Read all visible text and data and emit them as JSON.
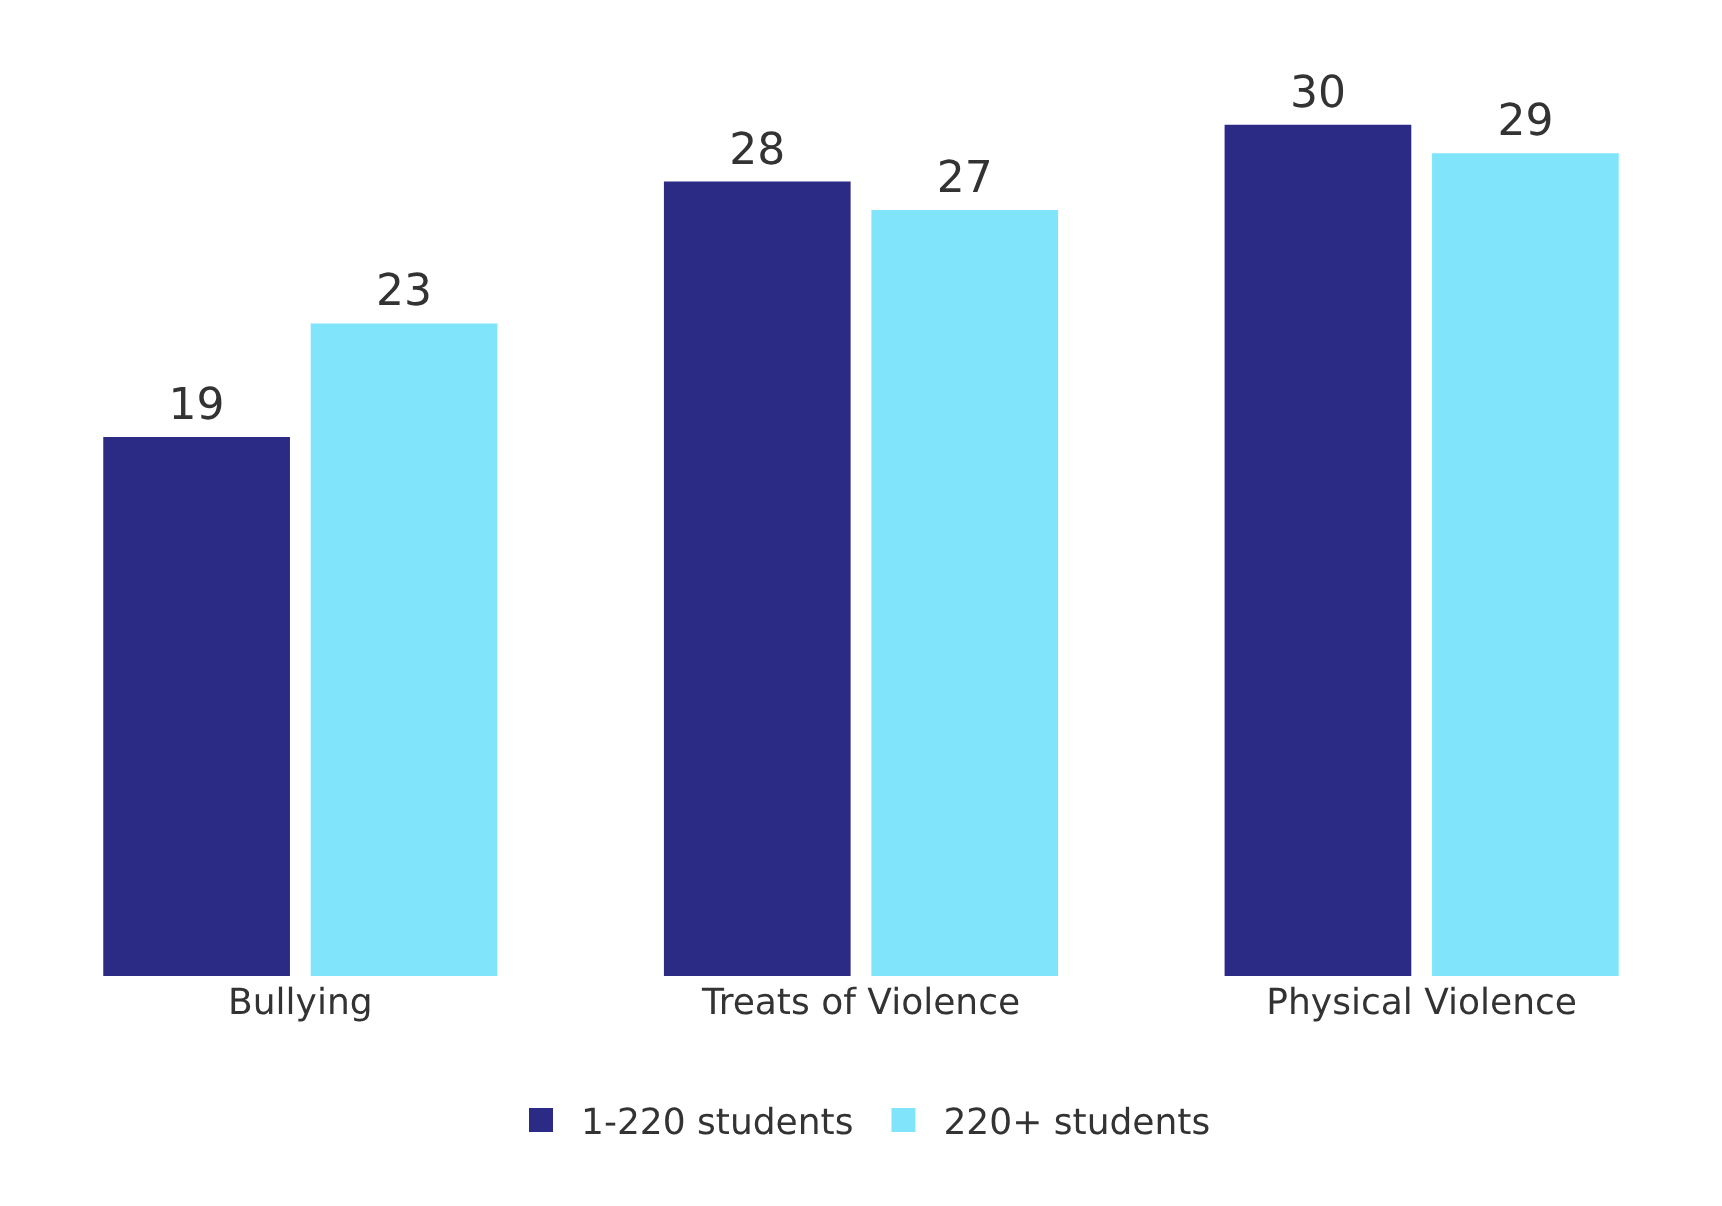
{
  "chart_data": {
    "type": "bar",
    "categories": [
      "Bullying",
      "Treats of Violence",
      "Physical Violence"
    ],
    "series": [
      {
        "name": "1-220 students",
        "color": "#2b2a84",
        "values": [
          19,
          28,
          30
        ]
      },
      {
        "name": "220+ students",
        "color": "#80e5fb",
        "values": [
          23,
          27,
          29
        ]
      }
    ],
    "data_labels": true,
    "legend": "bottom",
    "grid": false
  }
}
